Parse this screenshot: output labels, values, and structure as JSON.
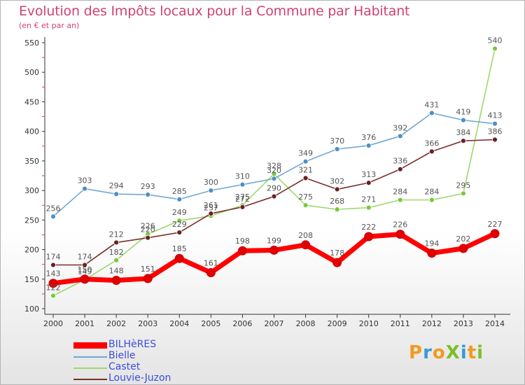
{
  "header": {
    "title": "Evolution des Impôts locaux pour la Commune par Habitant",
    "subtitle": "(en € et par an)"
  },
  "logo": {
    "text": "ProXiti",
    "letter_colors": [
      "#f29a1f",
      "#3a9ad9",
      "#f29a1f",
      "#7bbf2a",
      "#3a9ad9",
      "#f29a1f",
      "#7bbf2a"
    ]
  },
  "chart_data": {
    "type": "line",
    "title": "Evolution des Impôts locaux pour la Commune par Habitant",
    "subtitle": "(en € et par an)",
    "x": [
      "2000",
      "2001",
      "2002",
      "2003",
      "2004",
      "2005",
      "2006",
      "2007",
      "2008",
      "2009",
      "2010",
      "2011",
      "2012",
      "2013",
      "2014"
    ],
    "ylim": [
      100,
      550
    ],
    "yticks": [
      100,
      150,
      200,
      250,
      300,
      350,
      400,
      450,
      500,
      550
    ],
    "grid": false,
    "legend_position": "bottom-left",
    "series": [
      {
        "name": "Castet",
        "color": "#9ed86a",
        "marker": "#79c93a",
        "values": [
          122,
          149,
          182,
          226,
          249,
          257,
          275,
          328,
          275,
          268,
          271,
          284,
          284,
          295,
          540
        ]
      },
      {
        "name": "Louvie-Juzon",
        "color": "#7a2f2f",
        "marker": "#6b2020",
        "values": [
          174,
          174,
          212,
          220,
          229,
          261,
          272,
          290,
          321,
          302,
          313,
          336,
          366,
          384,
          386
        ]
      },
      {
        "name": "Bielle",
        "color": "#6fa8d4",
        "marker": "#4d8fc4",
        "values": [
          256,
          303,
          294,
          293,
          285,
          300,
          310,
          320,
          349,
          370,
          376,
          392,
          431,
          419,
          413
        ]
      },
      {
        "name": "BILHèRES",
        "color": "#ff0000",
        "marker": "#e00000",
        "bold": true,
        "values": [
          143,
          150,
          148,
          151,
          185,
          161,
          198,
          199,
          208,
          178,
          222,
          226,
          194,
          202,
          227
        ]
      }
    ],
    "legend_order": [
      "BILHèRES",
      "Bielle",
      "Castet",
      "Louvie-Juzon"
    ]
  }
}
